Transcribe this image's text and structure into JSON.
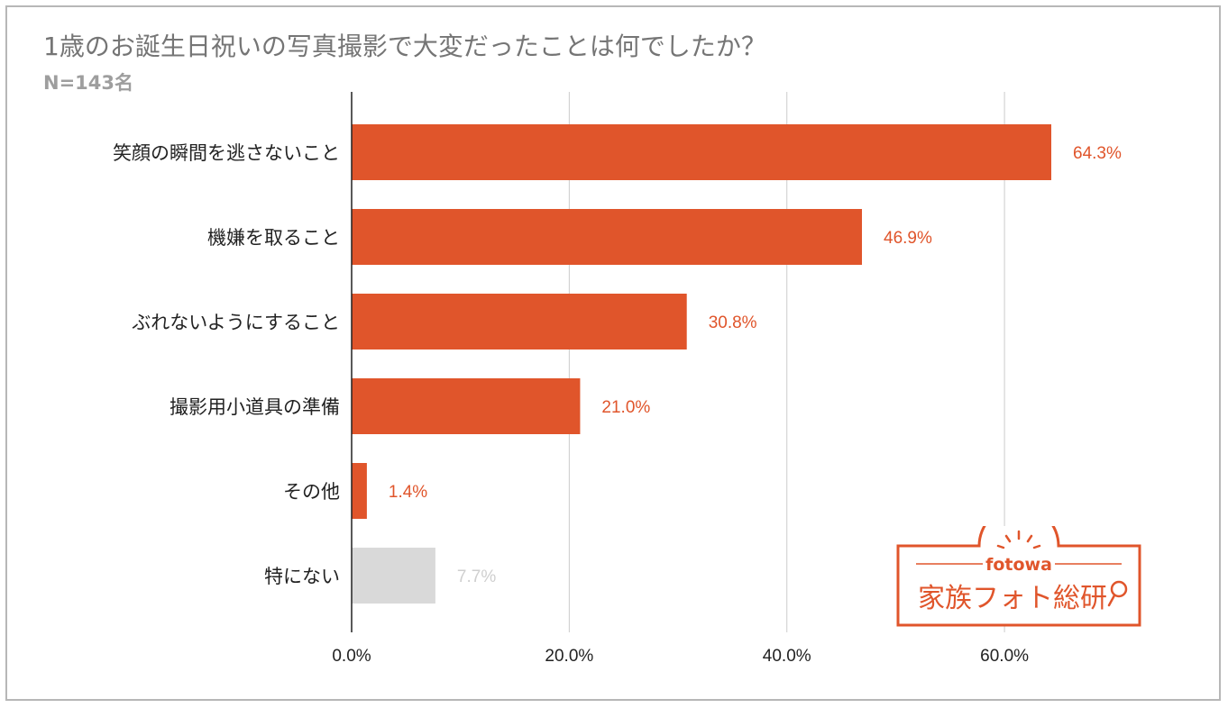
{
  "chart_data": {
    "type": "bar",
    "orientation": "horizontal",
    "title": "1歳のお誕生日祝いの写真撮影で大変だったことは何でしたか？",
    "subtitle": "N=143名",
    "categories": [
      "笑顔の瞬間を逃さないこと",
      "機嫌を取ること",
      "ぶれないようにすること",
      "撮影用小道具の準備",
      "その他",
      "特にない"
    ],
    "values": [
      64.3,
      46.9,
      30.8,
      21.0,
      1.4,
      7.7
    ],
    "value_labels": [
      "64.3%",
      "46.9%",
      "30.8%",
      "21.0%",
      "1.4%",
      "7.7%"
    ],
    "bar_colors": [
      "#e0552b",
      "#e0552b",
      "#e0552b",
      "#e0552b",
      "#e0552b",
      "#d9d9d9"
    ],
    "label_colors": [
      "#e0552b",
      "#e0552b",
      "#e0552b",
      "#e0552b",
      "#e0552b",
      "#cfcfcf"
    ],
    "xlim": [
      0,
      64.3
    ],
    "xticks": [
      0,
      20,
      40,
      60
    ],
    "xtick_labels": [
      "0.0%",
      "20.0%",
      "40.0%",
      "60.0%"
    ],
    "xlabel": "",
    "ylabel": "",
    "grid": true
  },
  "logo": {
    "brand": "fotowa",
    "name": "家族フォト総研",
    "color": "#e0552b"
  }
}
